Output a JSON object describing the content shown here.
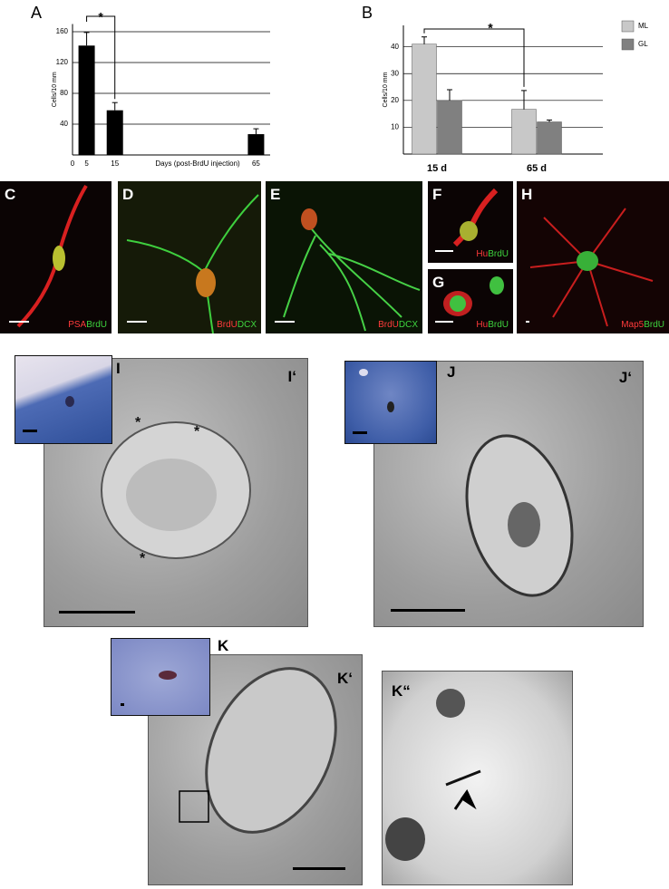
{
  "chart_data": [
    {
      "type": "bar",
      "panel": "A",
      "ylabel": "Cells/10 mm",
      "xlabel": "Days (post-BrdU injection)",
      "x": [
        5,
        15,
        65
      ],
      "values": [
        142,
        58,
        27
      ],
      "errors": [
        17,
        10,
        7
      ],
      "color": "#000000",
      "xlim": [
        0,
        70
      ],
      "xticks": [
        0,
        5,
        15,
        65
      ],
      "ylim": [
        0,
        170
      ],
      "yticks": [
        40,
        80,
        120,
        160
      ],
      "grid": true,
      "annotation": "*"
    },
    {
      "type": "grouped_bar",
      "panel": "B",
      "ylabel": "Cells/10 mm",
      "categories": [
        "15 d",
        "65 d"
      ],
      "series": [
        {
          "name": "ML",
          "color": "#c8c8c8",
          "values": [
            41,
            16.7
          ],
          "errors": [
            2.7,
            7
          ]
        },
        {
          "name": "GL",
          "color": "#808080",
          "values": [
            20,
            12
          ],
          "errors": [
            4,
            0.7
          ]
        }
      ],
      "ylim": [
        0,
        48
      ],
      "yticks": [
        10,
        20,
        30,
        40
      ],
      "grid": true,
      "legend": "outside-right",
      "annotation": "*"
    }
  ],
  "panels": [
    {
      "label": "C",
      "stain": [
        {
          "text": "PSA",
          "color": "#ff3b3b"
        },
        {
          "text": "BrdU",
          "color": "#3ed43e"
        }
      ]
    },
    {
      "label": "D",
      "stain": [
        {
          "text": "BrdU",
          "color": "#ff3b3b"
        },
        {
          "text": "DCX",
          "color": "#3ed43e"
        }
      ]
    },
    {
      "label": "E",
      "stain": [
        {
          "text": "BrdU",
          "color": "#ff3b3b"
        },
        {
          "text": "DCX",
          "color": "#3ed43e"
        }
      ]
    },
    {
      "label": "F",
      "stain": [
        {
          "text": "Hu",
          "color": "#ff3b3b"
        },
        {
          "text": "BrdU",
          "color": "#3ed43e"
        }
      ]
    },
    {
      "label": "G",
      "stain": [
        {
          "text": "Hu",
          "color": "#ff3b3b"
        },
        {
          "text": "BrdU",
          "color": "#3ed43e"
        }
      ]
    },
    {
      "label": "H",
      "stain": [
        {
          "text": "Map5",
          "color": "#ff3b3b"
        },
        {
          "text": "BrdU",
          "color": "#3ed43e"
        }
      ]
    },
    {
      "label": "I"
    },
    {
      "label": "I‘",
      "annotations": [
        "*",
        "*",
        "*"
      ]
    },
    {
      "label": "J"
    },
    {
      "label": "J‘"
    },
    {
      "label": "K"
    },
    {
      "label": "K‘"
    },
    {
      "label": "K“"
    }
  ]
}
